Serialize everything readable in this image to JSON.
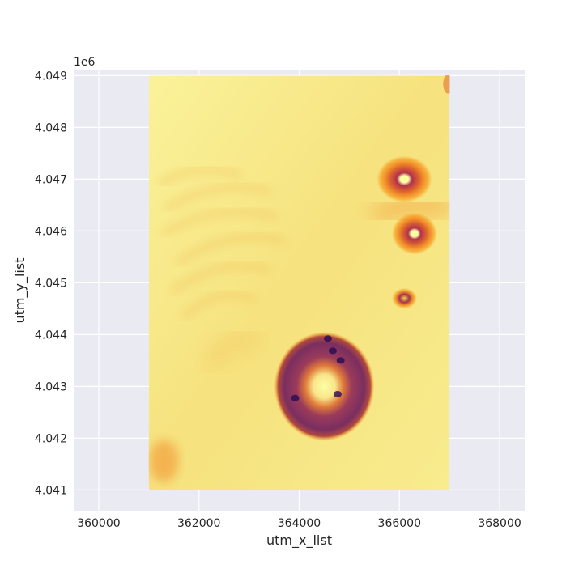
{
  "chart_data": {
    "type": "heatmap",
    "title": "",
    "xlabel": "utm_x_list",
    "ylabel": "utm_y_list",
    "y_offset_text": "1e6",
    "xlim": [
      359500,
      368500
    ],
    "ylim": [
      4040600,
      4049100
    ],
    "x_ticks": [
      360000,
      362000,
      364000,
      366000,
      368000
    ],
    "x_tick_labels": [
      "360000",
      "362000",
      "364000",
      "366000",
      "368000"
    ],
    "y_ticks": [
      4041000,
      4042000,
      4043000,
      4044000,
      4045000,
      4046000,
      4047000,
      4048000,
      4049000
    ],
    "y_tick_labels": [
      "4.041",
      "4.042",
      "4.043",
      "4.044",
      "4.045",
      "4.046",
      "4.047",
      "4.048",
      "4.049"
    ],
    "data_extent": {
      "x": [
        361000,
        367000
      ],
      "y": [
        4041000,
        4049000
      ]
    },
    "grid": true,
    "colormap": "inferno",
    "colors": {
      "background": "#EAEAF2",
      "grid": "#FFFFFF",
      "low": "#FCFFA4",
      "mid": "#F98C0A",
      "high": "#7A2065",
      "peak": "#280B54"
    },
    "features": [
      {
        "name": "crater",
        "x": 364500,
        "y": 4043000,
        "rx": 1000,
        "ry": 1050
      },
      {
        "name": "crater",
        "x": 366100,
        "y": 4047000,
        "rx": 550,
        "ry": 450
      },
      {
        "name": "crater",
        "x": 366300,
        "y": 4045950,
        "rx": 450,
        "ry": 400
      },
      {
        "name": "crater",
        "x": 366100,
        "y": 4044700,
        "rx": 250,
        "ry": 200
      }
    ]
  }
}
